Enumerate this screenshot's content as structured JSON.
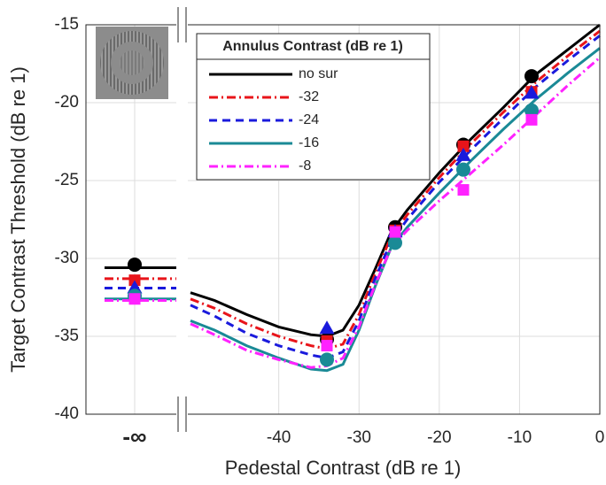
{
  "chart_data": {
    "type": "line",
    "xlabel": "Pedestal Contrast (dB re 1)",
    "ylabel": "Target Contrast Threshold (dB re 1)",
    "legend_title": "Annulus Contrast (dB re 1)",
    "legend": "upper-left",
    "grid": true,
    "inf_label": "-∞",
    "xlim": [
      -51,
      0
    ],
    "ylim": [
      -40,
      -15
    ],
    "xticks": [
      -40,
      -30,
      -20,
      -10,
      0
    ],
    "yticks": [
      -40,
      -35,
      -30,
      -25,
      -20,
      -15
    ],
    "x": [
      -34,
      -25.5,
      -17,
      -8.5
    ],
    "curve_x": [
      -51,
      -48,
      -44,
      -40,
      -36,
      -34,
      -32,
      -30,
      -28,
      -26,
      -24,
      -20,
      -16,
      -12,
      -8,
      -4,
      0
    ],
    "series": [
      {
        "name": "no sur",
        "color": "#000000",
        "dash": "solid",
        "marker": "circle",
        "inf_value": -30.4,
        "inf_curve": -30.6,
        "values": [
          -35.2,
          -28.0,
          -22.7,
          -18.3
        ],
        "curve_y": [
          -32.2,
          -32.7,
          -33.6,
          -34.4,
          -34.9,
          -35.0,
          -34.6,
          -33.0,
          -30.7,
          -28.3,
          -26.9,
          -24.5,
          -22.3,
          -20.3,
          -18.2,
          -16.6,
          -15.0
        ]
      },
      {
        "name": "-32",
        "color": "#e8141a",
        "dash": "dashdot",
        "marker": "square",
        "inf_value": -31.4,
        "inf_curve": -31.3,
        "values": [
          -35.3,
          -28.2,
          -22.8,
          -19.3
        ],
        "curve_y": [
          -32.6,
          -33.2,
          -34.2,
          -35.0,
          -35.6,
          -35.8,
          -35.5,
          -33.6,
          -31.0,
          -28.6,
          -27.2,
          -24.8,
          -22.6,
          -20.6,
          -18.7,
          -17.0,
          -15.4
        ]
      },
      {
        "name": "-24",
        "color": "#1a1adc",
        "dash": "dash",
        "marker": "triangle",
        "inf_value": -31.9,
        "inf_curve": -31.9,
        "values": [
          -34.5,
          -28.3,
          -23.4,
          -19.4
        ],
        "curve_y": [
          -33.0,
          -33.7,
          -34.8,
          -35.6,
          -36.2,
          -36.4,
          -36.0,
          -34.0,
          -31.3,
          -28.9,
          -27.5,
          -25.1,
          -23.0,
          -21.0,
          -19.0,
          -17.3,
          -15.7
        ]
      },
      {
        "name": "-16",
        "color": "#1a8a96",
        "dash": "solid",
        "marker": "circle",
        "inf_value": -32.4,
        "inf_curve": -32.6,
        "values": [
          -36.5,
          -29.0,
          -24.3,
          -20.5
        ],
        "curve_y": [
          -34.0,
          -34.6,
          -35.6,
          -36.4,
          -37.1,
          -37.2,
          -36.8,
          -34.6,
          -31.8,
          -29.3,
          -28.0,
          -25.8,
          -23.7,
          -21.7,
          -19.8,
          -18.1,
          -16.5
        ]
      },
      {
        "name": "-8",
        "color": "#ff22ff",
        "dash": "dashdot",
        "marker": "square",
        "inf_value": -32.6,
        "inf_curve": -32.7,
        "values": [
          -35.6,
          -28.3,
          -25.6,
          -21.1
        ],
        "curve_y": [
          -34.2,
          -34.9,
          -35.9,
          -36.5,
          -37.0,
          -36.9,
          -36.4,
          -34.4,
          -31.7,
          -29.3,
          -28.2,
          -26.3,
          -24.5,
          -22.7,
          -20.8,
          -18.9,
          -17.1
        ]
      }
    ]
  }
}
